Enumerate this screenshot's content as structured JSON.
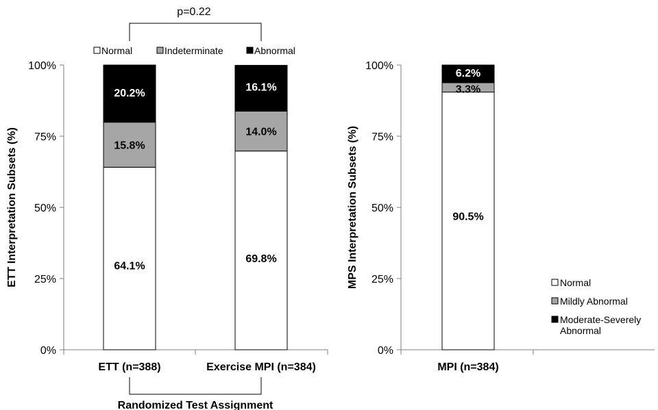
{
  "chart_data": [
    {
      "type": "bar",
      "stacked": true,
      "ylabel": "ETT Interpretation Subsets (%)",
      "xlabel": "Randomized Test Assignment",
      "ylim": [
        0,
        100
      ],
      "yticks": [
        "0%",
        "25%",
        "50%",
        "75%",
        "100%"
      ],
      "categories": [
        "ETT (n=388)",
        "Exercise MPI (n=384)"
      ],
      "series": [
        {
          "name": "Normal",
          "values": [
            64.1,
            69.8
          ],
          "labels": [
            "64.1%",
            "69.8%"
          ],
          "color": "#ffffff",
          "text_color": "#000000"
        },
        {
          "name": "Indeterminate",
          "values": [
            15.8,
            14.0
          ],
          "labels": [
            "15.8%",
            "14.0%"
          ],
          "color": "#a6a6a6",
          "text_color": "#000000"
        },
        {
          "name": "Abnormal",
          "values": [
            20.2,
            16.1
          ],
          "labels": [
            "20.2%",
            "16.1%"
          ],
          "color": "#000000",
          "text_color": "#ffffff"
        }
      ],
      "legend": "top",
      "annotation": "p=0.22"
    },
    {
      "type": "bar",
      "stacked": true,
      "ylabel": "MPS Interpretation Subsets (%)",
      "ylim": [
        0,
        100
      ],
      "yticks": [
        "0%",
        "25%",
        "50%",
        "75%",
        "100%"
      ],
      "categories": [
        "MPI (n=384)"
      ],
      "series": [
        {
          "name": "Normal",
          "values": [
            90.5
          ],
          "labels": [
            "90.5%"
          ],
          "color": "#ffffff",
          "text_color": "#000000"
        },
        {
          "name": "Mildly Abnormal",
          "values": [
            3.3
          ],
          "labels": [
            "3.3%"
          ],
          "color": "#a6a6a6",
          "text_color": "#000000"
        },
        {
          "name": "Moderate-Severely Abnormal",
          "legend_lines": [
            "Moderate-Severely",
            "Abnormal"
          ],
          "values": [
            6.2
          ],
          "labels": [
            "6.2%"
          ],
          "color": "#000000",
          "text_color": "#ffffff"
        }
      ],
      "legend": "right"
    }
  ]
}
